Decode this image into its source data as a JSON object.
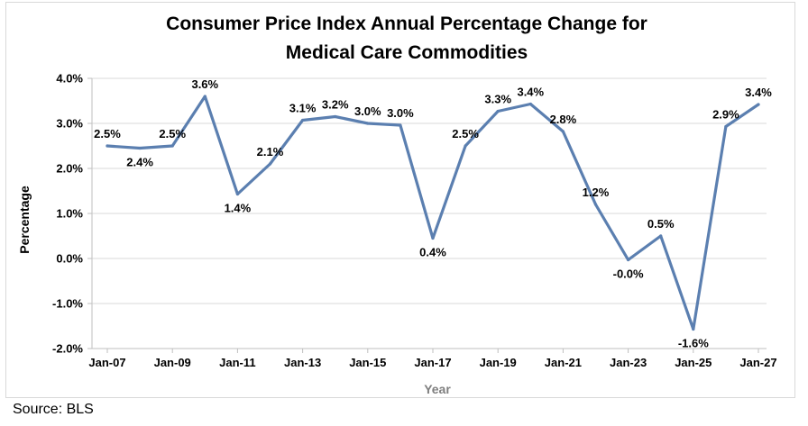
{
  "chart_data": {
    "type": "line",
    "title_lines": [
      "Consumer Price Index Annual Percentage Change for",
      "Medical Care Commodities"
    ],
    "xlabel": "Year",
    "ylabel": "Percentage",
    "ylim": [
      -2.0,
      4.0
    ],
    "yticks": [
      -2.0,
      -1.0,
      0.0,
      1.0,
      2.0,
      3.0,
      4.0
    ],
    "ytick_labels": [
      "-2.0%",
      "-1.0%",
      "0.0%",
      "1.0%",
      "2.0%",
      "3.0%",
      "4.0%"
    ],
    "xtick_labels": [
      "Jan-07",
      "Jan-09",
      "Jan-11",
      "Jan-13",
      "Jan-15",
      "Jan-17",
      "Jan-19",
      "Jan-21",
      "Jan-23",
      "Jan-25",
      "Jan-27"
    ],
    "series": [
      {
        "name": "Medical Care Commodities",
        "color": "#5b7fb0",
        "x": [
          2007,
          2008,
          2009,
          2010,
          2011,
          2012,
          2013,
          2014,
          2015,
          2016,
          2017,
          2018,
          2019,
          2020,
          2021,
          2022,
          2023,
          2024,
          2025,
          2026,
          2027
        ],
        "values": [
          2.5,
          2.45,
          2.5,
          3.6,
          1.43,
          2.1,
          3.07,
          3.15,
          3.0,
          2.96,
          0.45,
          2.5,
          3.27,
          3.43,
          2.82,
          1.2,
          -0.03,
          0.5,
          -1.57,
          2.93,
          3.42
        ],
        "labels": [
          "2.5%",
          "2.4%",
          "2.5%",
          "3.6%",
          "1.4%",
          "2.1%",
          "3.1%",
          "3.2%",
          "3.0%",
          "3.0%",
          "0.4%",
          "2.5%",
          "3.3%",
          "3.4%",
          "2.8%",
          "1.2%",
          "-0.0%",
          "0.5%",
          "-1.6%",
          "2.9%",
          "3.4%"
        ]
      }
    ]
  },
  "source": "Source: BLS"
}
